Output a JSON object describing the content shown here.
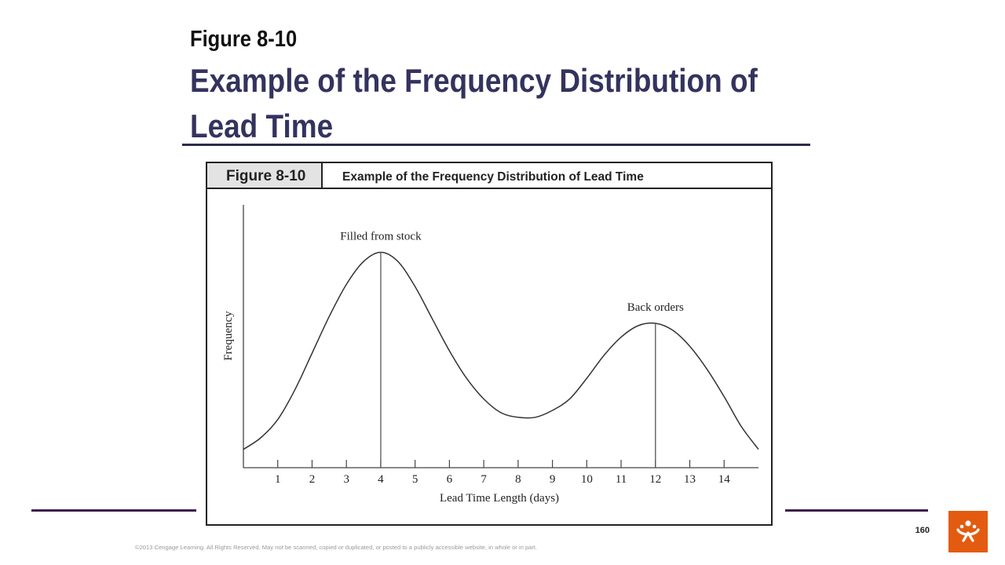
{
  "slide": {
    "figure_label": "Figure 8-10",
    "title": "Example of the Frequency Distribution of Lead Time",
    "page_number": "160",
    "copyright": "©2013 Cengage Learning. All Rights Reserved. May not be scanned, copied or duplicated, or posted to a publicly accessible website, in whole or in part."
  },
  "figure": {
    "header_label": "Figure 8-10",
    "header_title": "Example of the Frequency Distribution of Lead Time"
  },
  "colors": {
    "title": "#34335e",
    "rule": "#2b2a4c",
    "logo": "#e35b10",
    "curve": "#333333"
  },
  "chart_data": {
    "type": "line",
    "title": "Example of the Frequency Distribution of Lead Time",
    "xlabel": "Lead Time Length (days)",
    "ylabel": "Frequency",
    "xlim": [
      0,
      15
    ],
    "ylim": [
      0,
      10
    ],
    "x_ticks": [
      1,
      2,
      3,
      4,
      5,
      6,
      7,
      8,
      9,
      10,
      11,
      12,
      13,
      14
    ],
    "y_ticks": [],
    "grid": false,
    "series": [
      {
        "x": [
          0,
          0.5,
          1,
          1.5,
          2,
          2.5,
          3,
          3.5,
          4,
          4.5,
          5,
          5.5,
          6,
          6.5,
          7,
          7.5,
          8,
          8.5,
          9,
          9.5,
          10,
          10.5,
          11,
          11.5,
          12,
          12.5,
          13,
          13.5,
          14,
          14.5,
          15
        ],
        "values": [
          0.8,
          1.3,
          2.1,
          3.4,
          5.0,
          6.6,
          8.0,
          9.0,
          9.4,
          9.0,
          7.9,
          6.5,
          5.1,
          3.9,
          3.0,
          2.4,
          2.2,
          2.2,
          2.5,
          3.0,
          3.9,
          4.9,
          5.7,
          6.2,
          6.3,
          6.0,
          5.3,
          4.3,
          3.1,
          1.8,
          0.8
        ]
      }
    ],
    "annotations": [
      {
        "text": "Filled from stock",
        "x": 4,
        "y": 9.4
      },
      {
        "text": "Back orders",
        "x": 12,
        "y": 6.3
      }
    ]
  }
}
